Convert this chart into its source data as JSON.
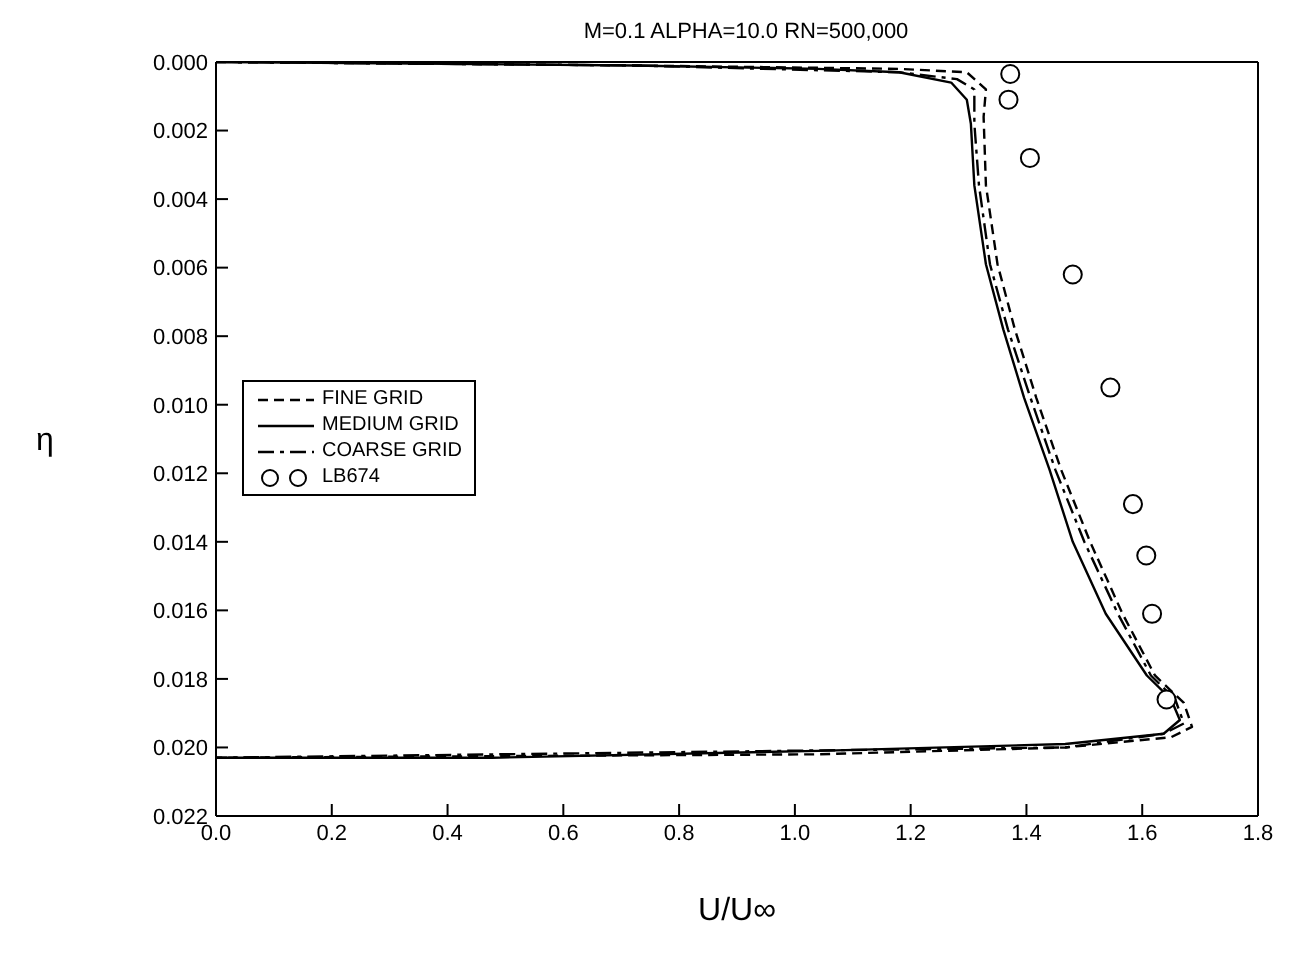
{
  "chart_data": {
    "type": "line",
    "title": "M=0.1 ALPHA=10.0 RN=500,000",
    "xlabel": "U/U∞",
    "ylabel": "η",
    "xlim": [
      0,
      1.8
    ],
    "ylim": [
      0.022,
      0
    ],
    "xticks": [
      {
        "value": 0,
        "label": "0.0"
      },
      {
        "value": 0.2,
        "label": "0.2"
      },
      {
        "value": 0.4,
        "label": "0.4"
      },
      {
        "value": 0.6,
        "label": "0.6"
      },
      {
        "value": 0.8,
        "label": "0.8"
      },
      {
        "value": 1,
        "label": "1.0"
      },
      {
        "value": 1.2,
        "label": "1.2"
      },
      {
        "value": 1.4,
        "label": "1.4"
      },
      {
        "value": 1.6,
        "label": "1.6"
      },
      {
        "value": 1.8,
        "label": "1.8"
      }
    ],
    "yticks": [
      {
        "value": 0,
        "label": "0.000"
      },
      {
        "value": 0.002,
        "label": "0.002"
      },
      {
        "value": 0.004,
        "label": "0.004"
      },
      {
        "value": 0.006,
        "label": "0.006"
      },
      {
        "value": 0.008,
        "label": "0.008"
      },
      {
        "value": 0.01,
        "label": "0.010"
      },
      {
        "value": 0.012,
        "label": "0.012"
      },
      {
        "value": 0.014,
        "label": "0.014"
      },
      {
        "value": 0.016,
        "label": "0.016"
      },
      {
        "value": 0.018,
        "label": "0.018"
      },
      {
        "value": 0.02,
        "label": "0.020"
      },
      {
        "value": 0.022,
        "label": "0.022"
      }
    ],
    "legend": "left",
    "marker": "none",
    "series": [
      {
        "name": "FINE GRID",
        "line_style": "dashed",
        "color": "#000000",
        "x": [
          0,
          0.72,
          1.18,
          1.297,
          1.33,
          1.326,
          1.33,
          1.35,
          1.38,
          1.417,
          1.46,
          1.51,
          1.566,
          1.622,
          1.672,
          1.686,
          1.65,
          1.467,
          1.04,
          0
        ],
        "values": [
          0,
          0.0001,
          0.0002,
          0.0003,
          0.0008,
          0.0016,
          0.0036,
          0.0059,
          0.0078,
          0.0098,
          0.0119,
          0.014,
          0.0161,
          0.0179,
          0.0187,
          0.0194,
          0.0197,
          0.02,
          0.0202,
          0.0203
        ]
      },
      {
        "name": "MEDIUM GRID",
        "line_style": "solid",
        "color": "#000000",
        "x": [
          0,
          0.72,
          1.04,
          1.18,
          1.27,
          1.297,
          1.304,
          1.31,
          1.33,
          1.36,
          1.396,
          1.44,
          1.48,
          1.537,
          1.608,
          1.65,
          1.665,
          1.637,
          1.467,
          1.04,
          0.477,
          0
        ],
        "values": [
          0,
          0.0001,
          0.0002,
          0.0003,
          0.0006,
          0.0011,
          0.0018,
          0.0036,
          0.0059,
          0.0078,
          0.0098,
          0.0119,
          0.014,
          0.0161,
          0.0179,
          0.0186,
          0.0192,
          0.0196,
          0.0199,
          0.0201,
          0.0203,
          0.0203
        ]
      },
      {
        "name": "COARSE GRID",
        "line_style": "dashdot",
        "color": "#000000",
        "x": [
          0,
          0.72,
          1.18,
          1.28,
          1.31,
          1.31,
          1.318,
          1.337,
          1.368,
          1.407,
          1.45,
          1.5,
          1.558,
          1.615,
          1.657,
          1.672,
          1.637,
          1.467,
          0
        ],
        "values": [
          0,
          0.0001,
          0.0003,
          0.0005,
          0.0008,
          0.0018,
          0.0036,
          0.0059,
          0.0078,
          0.0098,
          0.0119,
          0.014,
          0.0161,
          0.0179,
          0.0186,
          0.0193,
          0.0196,
          0.02,
          0.0203
        ]
      },
      {
        "name": "LB674",
        "type": "scatter",
        "marker": "circle",
        "color": "#000000",
        "x": [
          1.372,
          1.369,
          1.406,
          1.48,
          1.545,
          1.584,
          1.607,
          1.617,
          1.642
        ],
        "values": [
          0.00035,
          0.0011,
          0.0028,
          0.0062,
          0.0095,
          0.0129,
          0.0144,
          0.0161,
          0.0186
        ]
      }
    ]
  }
}
